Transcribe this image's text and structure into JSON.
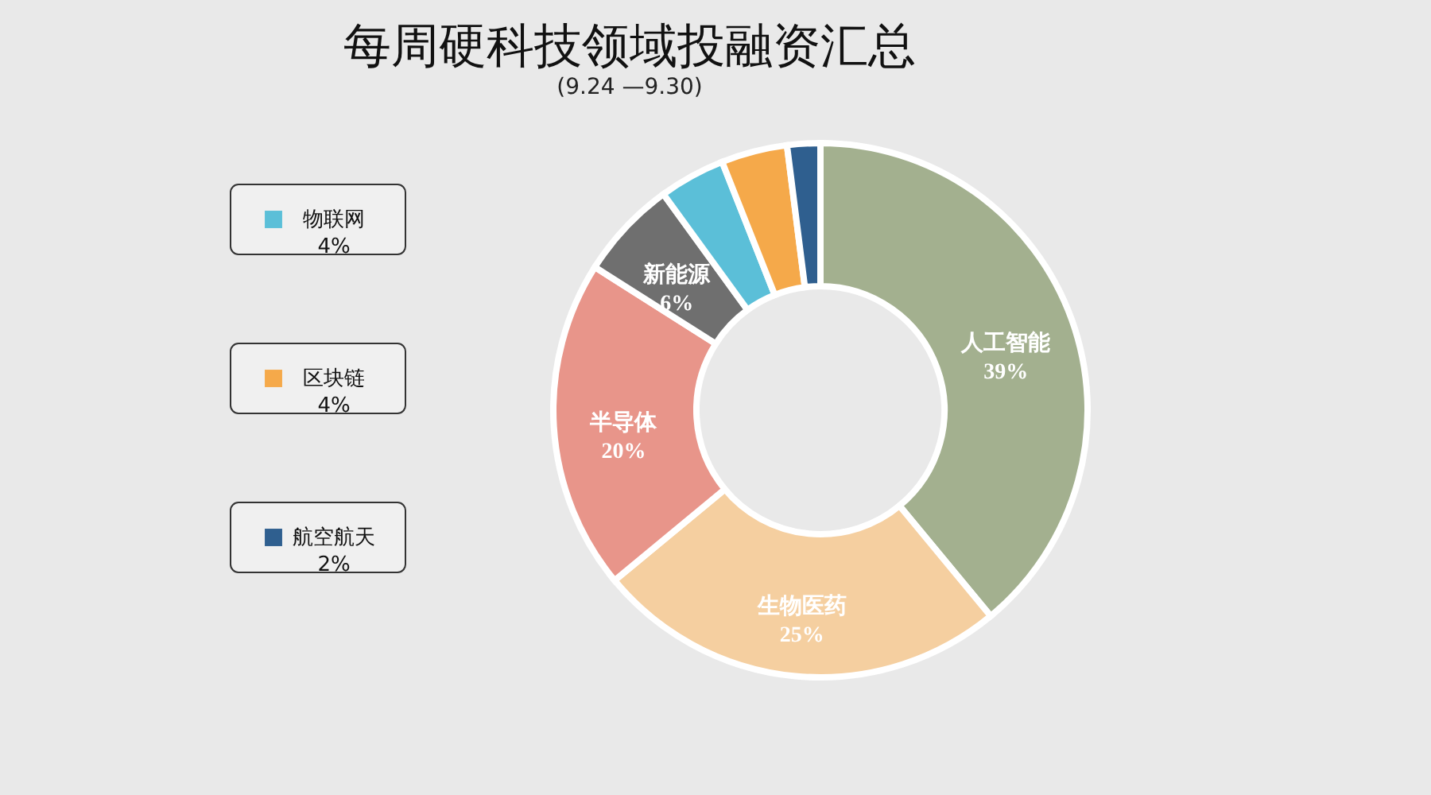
{
  "chart_data": {
    "type": "donut",
    "title": "每周硬科技领域投融资汇总",
    "subtitle": "(9.24 —9.30)",
    "categories": [
      "人工智能",
      "生物医药",
      "半导体",
      "新能源",
      "物联网",
      "区块链",
      "航空航天"
    ],
    "values": [
      39,
      25,
      20,
      6,
      4,
      4,
      2
    ],
    "value_labels": [
      "39%",
      "25%",
      "20%",
      "6%",
      "4%",
      "4%",
      "2%"
    ],
    "colors": [
      "#a3b08f",
      "#f5cfa0",
      "#e8958a",
      "#6f6f6f",
      "#5bbfd8",
      "#f5a94a",
      "#2f5f8f"
    ],
    "legend": "left"
  }
}
